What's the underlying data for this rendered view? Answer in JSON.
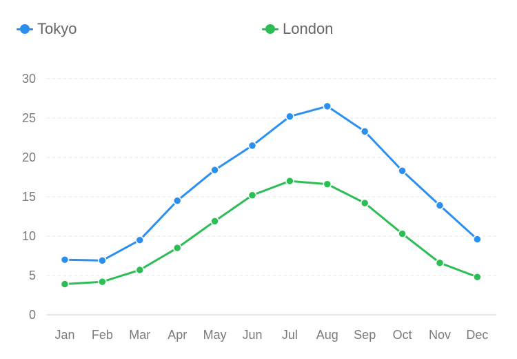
{
  "chart_data": {
    "type": "line",
    "title": "",
    "xlabel": "",
    "ylabel": "",
    "categories": [
      "Jan",
      "Feb",
      "Mar",
      "Apr",
      "May",
      "Jun",
      "Jul",
      "Aug",
      "Sep",
      "Oct",
      "Nov",
      "Dec"
    ],
    "ylim": [
      0,
      30
    ],
    "yticks": [
      0,
      5,
      10,
      15,
      20,
      25,
      30
    ],
    "grid": true,
    "legend_position": "top",
    "series": [
      {
        "name": "Tokyo",
        "color": "#2b8ff0",
        "values": [
          7.0,
          6.9,
          9.5,
          14.5,
          18.4,
          21.5,
          25.2,
          26.5,
          23.3,
          18.3,
          13.9,
          9.6
        ]
      },
      {
        "name": "London",
        "color": "#2cbd55",
        "values": [
          3.9,
          4.2,
          5.7,
          8.5,
          11.9,
          15.2,
          17.0,
          16.6,
          14.2,
          10.3,
          6.6,
          4.8
        ]
      }
    ]
  }
}
